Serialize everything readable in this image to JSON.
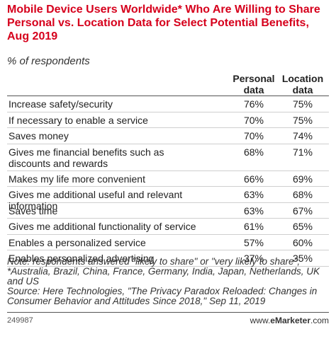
{
  "chart_data": {
    "type": "table",
    "title": "Mobile Device Users Worldwide* Who Are Willing to Share Personal vs. Location Data for Select Potential Benefits, Aug 2019",
    "subtitle": "% of respondents",
    "columns": [
      "Personal data",
      "Location data"
    ],
    "rows": [
      {
        "label": "Increase safety/security",
        "values": [
          "76%",
          "75%"
        ]
      },
      {
        "label": "If necessary to enable a service",
        "values": [
          "70%",
          "75%"
        ]
      },
      {
        "label": "Saves money",
        "values": [
          "70%",
          "74%"
        ]
      },
      {
        "label": "Gives me financial benefits such as discounts and rewards",
        "values": [
          "68%",
          "71%"
        ]
      },
      {
        "label": "Makes my life more convenient",
        "values": [
          "66%",
          "69%"
        ]
      },
      {
        "label": "Gives me additional useful and relevant information",
        "values": [
          "63%",
          "68%"
        ]
      },
      {
        "label": "Saves time",
        "values": [
          "63%",
          "67%"
        ]
      },
      {
        "label": "Gives me additional functionality of service",
        "values": [
          "61%",
          "65%"
        ]
      },
      {
        "label": "Enables a personalized service",
        "values": [
          "57%",
          "60%"
        ]
      },
      {
        "label": "Enables personalized advertising",
        "values": [
          "37%",
          "35%"
        ]
      }
    ],
    "notes": [
      "Note: respondents answered \"likely to share\" or \"very likely to share\"; *Australia, Brazil, China, France, Germany, India, Japan, Netherlands, UK and US",
      "Source: Here Technologies, \"The Privacy Paradox Reloaded: Changes in Consumer Behavior and Attitudes Since 2018,\" Sep 11, 2019"
    ],
    "chart_id": "249987",
    "brand": {
      "prefix": "www.",
      "name": "eMarketer",
      "suffix": ".com"
    }
  },
  "colors": {
    "title": "#d6001c",
    "text": "#222222",
    "rule": "#cfcfcf"
  }
}
